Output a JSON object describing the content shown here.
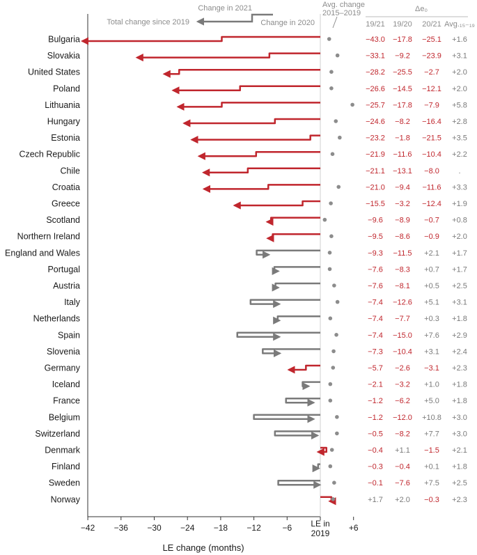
{
  "chart_data": {
    "type": "arrow-chart",
    "xlabel": "LE change (months)",
    "x_ticks": [
      -42,
      -36,
      -30,
      -24,
      -18,
      -12,
      -6,
      6
    ],
    "x_tick_labels": [
      "−42",
      "−36",
      "−30",
      "−24",
      "−18",
      "−12",
      "−6",
      "+6"
    ],
    "zero_label_line1": "LE in",
    "zero_label_line2": "2019",
    "xlim": [
      -43.5,
      8
    ],
    "legend": {
      "change_2021": "Change in 2021",
      "total_since_2019": "Total change since 2019",
      "change_2020": "Change in 2020"
    },
    "avg_header_line1": "Avg. change",
    "avg_header_line2": "2015–2019",
    "table_header": {
      "delta_label": "Δe₀",
      "col_19_21": "19/21",
      "col_19_20": "19/20",
      "col_20_21": "20/21",
      "col_avg": "Avg.₁₅₋₁₉"
    },
    "colors": {
      "decline": "#c0262d",
      "increase": "#7a7a7a",
      "avg": "#8c8c8c"
    },
    "rows": [
      {
        "country": "Bulgaria",
        "d19_21": -43.0,
        "d19_20": -17.8,
        "d20_21": -25.1,
        "avg": 1.6,
        "t19_21": "−43.0",
        "t19_20": "−17.8",
        "t20_21": "−25.1",
        "tavg": "+1.6"
      },
      {
        "country": "Slovakia",
        "d19_21": -33.1,
        "d19_20": -9.2,
        "d20_21": -23.9,
        "avg": 3.1,
        "t19_21": "−33.1",
        "t19_20": "−9.2",
        "t20_21": "−23.9",
        "tavg": "+3.1"
      },
      {
        "country": "United States",
        "d19_21": -28.2,
        "d19_20": -25.5,
        "d20_21": -2.7,
        "avg": 2.0,
        "t19_21": "−28.2",
        "t19_20": "−25.5",
        "t20_21": "−2.7",
        "tavg": "+2.0"
      },
      {
        "country": "Poland",
        "d19_21": -26.6,
        "d19_20": -14.5,
        "d20_21": -12.1,
        "avg": 2.0,
        "t19_21": "−26.6",
        "t19_20": "−14.5",
        "t20_21": "−12.1",
        "tavg": "+2.0"
      },
      {
        "country": "Lithuania",
        "d19_21": -25.7,
        "d19_20": -17.8,
        "d20_21": -7.9,
        "avg": 5.8,
        "t19_21": "−25.7",
        "t19_20": "−17.8",
        "t20_21": "−7.9",
        "tavg": "+5.8"
      },
      {
        "country": "Hungary",
        "d19_21": -24.6,
        "d19_20": -8.2,
        "d20_21": -16.4,
        "avg": 2.8,
        "t19_21": "−24.6",
        "t19_20": "−8.2",
        "t20_21": "−16.4",
        "tavg": "+2.8"
      },
      {
        "country": "Estonia",
        "d19_21": -23.2,
        "d19_20": -1.8,
        "d20_21": -21.5,
        "avg": 3.5,
        "t19_21": "−23.2",
        "t19_20": "−1.8",
        "t20_21": "−21.5",
        "tavg": "+3.5"
      },
      {
        "country": "Czech Republic",
        "d19_21": -21.9,
        "d19_20": -11.6,
        "d20_21": -10.4,
        "avg": 2.2,
        "t19_21": "−21.9",
        "t19_20": "−11.6",
        "t20_21": "−10.4",
        "tavg": "+2.2"
      },
      {
        "country": "Chile",
        "d19_21": -21.1,
        "d19_20": -13.1,
        "d20_21": -8.0,
        "avg": null,
        "t19_21": "−21.1",
        "t19_20": "−13.1",
        "t20_21": "−8.0",
        "tavg": "."
      },
      {
        "country": "Croatia",
        "d19_21": -21.0,
        "d19_20": -9.4,
        "d20_21": -11.6,
        "avg": 3.3,
        "t19_21": "−21.0",
        "t19_20": "−9.4",
        "t20_21": "−11.6",
        "tavg": "+3.3"
      },
      {
        "country": "Greece",
        "d19_21": -15.5,
        "d19_20": -3.2,
        "d20_21": -12.4,
        "avg": 1.9,
        "t19_21": "−15.5",
        "t19_20": "−3.2",
        "t20_21": "−12.4",
        "tavg": "+1.9"
      },
      {
        "country": "Scotland",
        "d19_21": -9.6,
        "d19_20": -8.9,
        "d20_21": -0.7,
        "avg": 0.8,
        "t19_21": "−9.6",
        "t19_20": "−8.9",
        "t20_21": "−0.7",
        "tavg": "+0.8"
      },
      {
        "country": "Northern Ireland",
        "d19_21": -9.5,
        "d19_20": -8.6,
        "d20_21": -0.9,
        "avg": 2.0,
        "t19_21": "−9.5",
        "t19_20": "−8.6",
        "t20_21": "−0.9",
        "tavg": "+2.0"
      },
      {
        "country": "England and Wales",
        "d19_21": -9.3,
        "d19_20": -11.5,
        "d20_21": 2.1,
        "avg": 1.7,
        "t19_21": "−9.3",
        "t19_20": "−11.5",
        "t20_21": "+2.1",
        "tavg": "+1.7"
      },
      {
        "country": "Portugal",
        "d19_21": -7.6,
        "d19_20": -8.3,
        "d20_21": 0.7,
        "avg": 1.7,
        "t19_21": "−7.6",
        "t19_20": "−8.3",
        "t20_21": "+0.7",
        "tavg": "+1.7"
      },
      {
        "country": "Austria",
        "d19_21": -7.6,
        "d19_20": -8.1,
        "d20_21": 0.5,
        "avg": 2.5,
        "t19_21": "−7.6",
        "t19_20": "−8.1",
        "t20_21": "+0.5",
        "tavg": "+2.5"
      },
      {
        "country": "Italy",
        "d19_21": -7.4,
        "d19_20": -12.6,
        "d20_21": 5.1,
        "avg": 3.1,
        "t19_21": "−7.4",
        "t19_20": "−12.6",
        "t20_21": "+5.1",
        "tavg": "+3.1"
      },
      {
        "country": "Netherlands",
        "d19_21": -7.4,
        "d19_20": -7.7,
        "d20_21": 0.3,
        "avg": 1.8,
        "t19_21": "−7.4",
        "t19_20": "−7.7",
        "t20_21": "+0.3",
        "tavg": "+1.8"
      },
      {
        "country": "Spain",
        "d19_21": -7.4,
        "d19_20": -15.0,
        "d20_21": 7.6,
        "avg": 2.9,
        "t19_21": "−7.4",
        "t19_20": "−15.0",
        "t20_21": "+7.6",
        "tavg": "+2.9"
      },
      {
        "country": "Slovenia",
        "d19_21": -7.3,
        "d19_20": -10.4,
        "d20_21": 3.1,
        "avg": 2.4,
        "t19_21": "−7.3",
        "t19_20": "−10.4",
        "t20_21": "+3.1",
        "tavg": "+2.4"
      },
      {
        "country": "Germany",
        "d19_21": -5.7,
        "d19_20": -2.6,
        "d20_21": -3.1,
        "avg": 2.3,
        "t19_21": "−5.7",
        "t19_20": "−2.6",
        "t20_21": "−3.1",
        "tavg": "+2.3"
      },
      {
        "country": "Iceland",
        "d19_21": -2.1,
        "d19_20": -3.2,
        "d20_21": 1.0,
        "avg": 1.8,
        "t19_21": "−2.1",
        "t19_20": "−3.2",
        "t20_21": "+1.0",
        "tavg": "+1.8"
      },
      {
        "country": "France",
        "d19_21": -1.2,
        "d19_20": -6.2,
        "d20_21": 5.0,
        "avg": 1.8,
        "t19_21": "−1.2",
        "t19_20": "−6.2",
        "t20_21": "+5.0",
        "tavg": "+1.8"
      },
      {
        "country": "Belgium",
        "d19_21": -1.2,
        "d19_20": -12.0,
        "d20_21": 10.8,
        "avg": 3.0,
        "t19_21": "−1.2",
        "t19_20": "−12.0",
        "t20_21": "+10.8",
        "tavg": "+3.0"
      },
      {
        "country": "Switzerland",
        "d19_21": -0.5,
        "d19_20": -8.2,
        "d20_21": 7.7,
        "avg": 3.0,
        "t19_21": "−0.5",
        "t19_20": "−8.2",
        "t20_21": "+7.7",
        "tavg": "+3.0"
      },
      {
        "country": "Denmark",
        "d19_21": -0.4,
        "d19_20": 1.1,
        "d20_21": -1.5,
        "avg": 2.1,
        "t19_21": "−0.4",
        "t19_20": "+1.1",
        "t20_21": "−1.5",
        "tavg": "+2.1"
      },
      {
        "country": "Finland",
        "d19_21": -0.3,
        "d19_20": -0.4,
        "d20_21": 0.1,
        "avg": 1.8,
        "t19_21": "−0.3",
        "t19_20": "−0.4",
        "t20_21": "+0.1",
        "tavg": "+1.8"
      },
      {
        "country": "Sweden",
        "d19_21": -0.1,
        "d19_20": -7.6,
        "d20_21": 7.5,
        "avg": 2.5,
        "t19_21": "−0.1",
        "t19_20": "−7.6",
        "t20_21": "+7.5",
        "tavg": "+2.5"
      },
      {
        "country": "Norway",
        "d19_21": 1.7,
        "d19_20": 2.0,
        "d20_21": -0.3,
        "avg": 2.3,
        "t19_21": "+1.7",
        "t19_20": "+2.0",
        "t20_21": "−0.3",
        "tavg": "+2.3"
      }
    ]
  }
}
